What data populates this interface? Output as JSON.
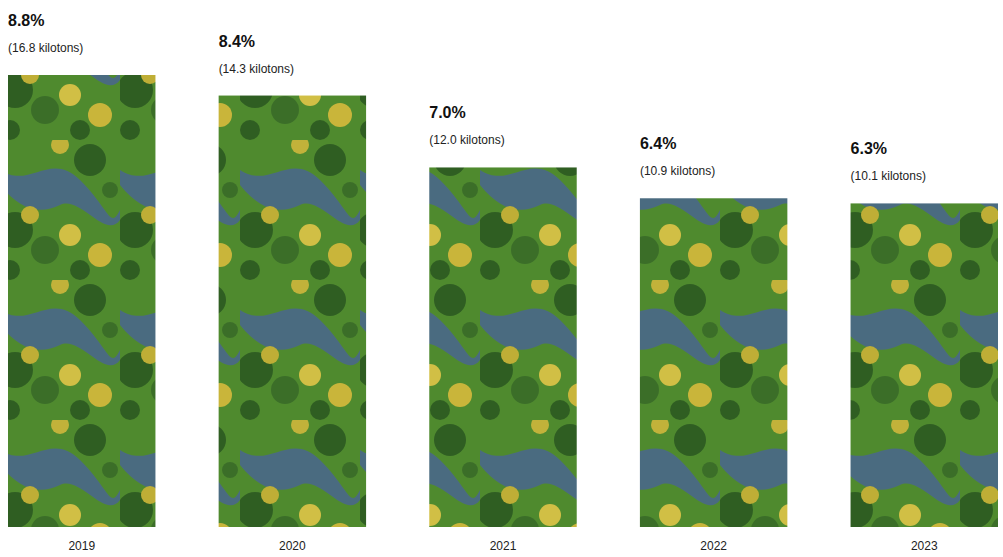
{
  "chart_data": {
    "type": "bar",
    "categories": [
      "2019",
      "2020",
      "2021",
      "2022",
      "2023"
    ],
    "values": [
      8.8,
      8.4,
      7.0,
      6.4,
      6.3
    ],
    "value_labels": [
      "8.8%",
      "8.4%",
      "7.0%",
      "6.4%",
      "6.3%"
    ],
    "kilotons": [
      16.8,
      14.3,
      12.0,
      10.9,
      10.1
    ],
    "kilotons_labels": [
      "(16.8 kilotons)",
      "(14.3 kilotons)",
      "(12.0 kilotons)",
      "(10.9 kilotons)",
      "(10.1 kilotons)"
    ],
    "color": "#4f8a2e",
    "ylim": [
      0,
      8.8
    ],
    "data_labels": true,
    "tick_labels": "x",
    "grid": false
  }
}
